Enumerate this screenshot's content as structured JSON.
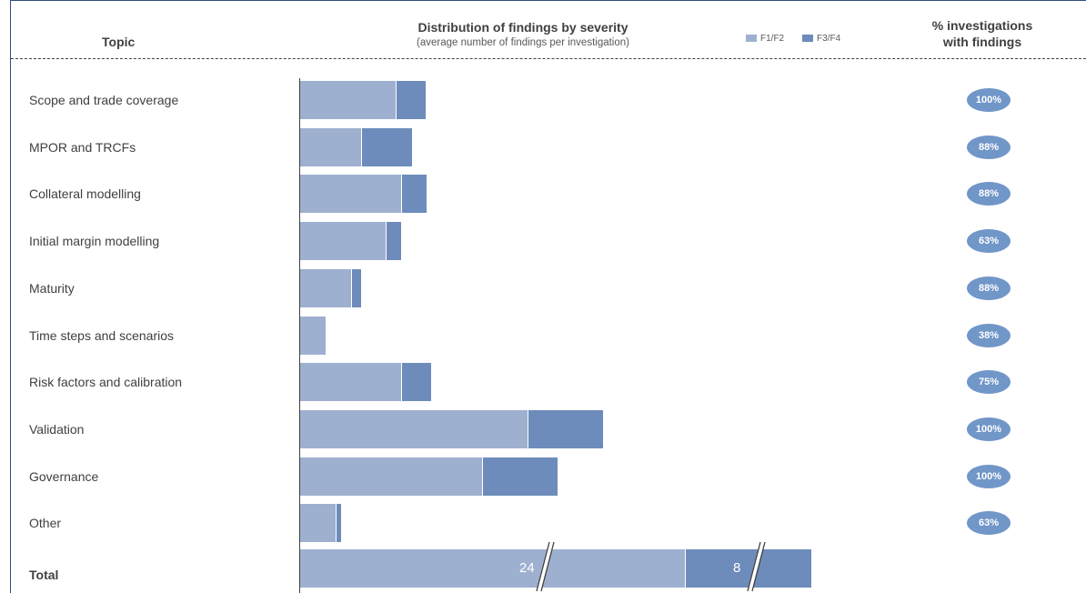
{
  "header": {
    "topic": "Topic",
    "chart_title": "Distribution of findings by severity",
    "chart_subtitle": "(average number of findings per investigation)",
    "pct_title_line1": "% investigations",
    "pct_title_line2": "with findings"
  },
  "colors": {
    "f1f2": "#9eb0cf",
    "f3f4": "#6d8cbb",
    "badge": "#7196c8"
  },
  "chart_data": {
    "type": "bar",
    "orientation": "horizontal",
    "stacked": true,
    "categories": [
      "Scope and trade coverage",
      "MPOR and TRCFs",
      "Collateral modelling",
      "Initial margin modelling",
      "Maturity",
      "Time steps and scenarios",
      "Risk factors and calibration",
      "Validation",
      "Governance",
      "Other"
    ],
    "series": [
      {
        "name": "F1/F2",
        "values": [
          1.9,
          1.2,
          2.0,
          1.7,
          1.0,
          0.5,
          2.0,
          4.5,
          3.6,
          0.7
        ]
      },
      {
        "name": "F3/F4",
        "values": [
          0.6,
          1.0,
          0.5,
          0.3,
          0.2,
          0.0,
          0.6,
          1.5,
          1.5,
          0.1
        ]
      }
    ],
    "pct_with_findings": [
      "100%",
      "88%",
      "88%",
      "63%",
      "88%",
      "38%",
      "75%",
      "100%",
      "100%",
      "63%"
    ],
    "total": {
      "label": "Total",
      "f1f2": 24,
      "f3f4": 8,
      "f1f2_label": "24",
      "f3f4_label": "8"
    },
    "legend": [
      "F1/F2",
      "F3/F4"
    ],
    "legend_position": "top-right",
    "grid": false
  }
}
